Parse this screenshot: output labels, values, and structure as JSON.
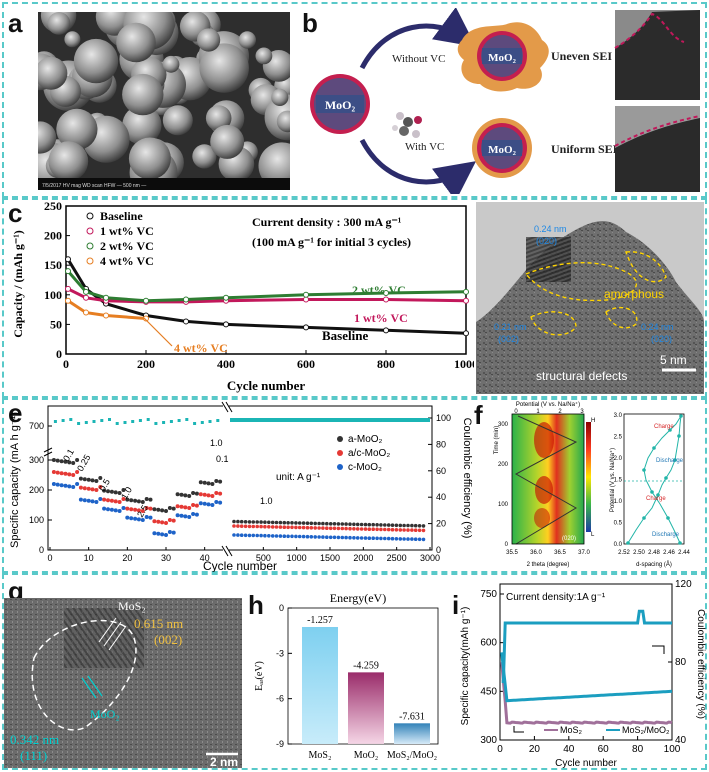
{
  "panels": {
    "a": {
      "label": "a",
      "sem_footer": "7/5/2017  HV  mag  WD  scan  HFW  —  500 nm —"
    },
    "b": {
      "label": "b",
      "core": "MoO₂",
      "without": "Without VC",
      "with": "With VC",
      "uneven": "Uneven SEI",
      "uniform": "Uniform SEI",
      "moo2": "MoO₂"
    },
    "c": {
      "label": "c",
      "title1": "Current density : 300 mA g⁻¹",
      "title2": "(100 mA g⁻¹ for initial 3 cycles)",
      "ylabel": "Capacity / (mAh g⁻¹)",
      "xlabel": "Cycle number",
      "legend": [
        "Baseline",
        "1 wt% VC",
        "2 wt% VC",
        "4 wt% VC"
      ],
      "ann": {
        "b2": "2 wt% VC",
        "b1": "1 wt% VC",
        "base": "Baseline",
        "v4": "4 wt% VC"
      },
      "xticks": [
        "0",
        "200",
        "400",
        "600",
        "800",
        "1000"
      ],
      "yticks": [
        "0",
        "50",
        "100",
        "150",
        "200",
        "250"
      ]
    },
    "d": {
      "label": "d",
      "d1": "0.24 nm",
      "d1b": "(020)",
      "d2": "0.21 nm",
      "d2b": "(002)",
      "d3": "0.24 nm",
      "d3b": "(020)",
      "amorph": "amorphous",
      "defects": "structural defects",
      "scale": "5 nm"
    },
    "e": {
      "label": "e",
      "ylabel": "Specific capacity (mA h g⁻¹)",
      "y2label": "Coulombic efficiency (%)",
      "xlabel": "Cycle number",
      "unit": "unit: A g⁻¹",
      "legend": [
        "a-MoO₂",
        "a/c-MoO₂",
        "c-MoO₂"
      ],
      "rates": [
        "0.1",
        "0.25",
        "0.5",
        "1.0",
        "2.5",
        "1.0",
        "0.1",
        "1.0"
      ],
      "yticks": [
        "0",
        "100",
        "200",
        "300",
        "700"
      ],
      "y2ticks": [
        "0",
        "20",
        "40",
        "60",
        "80",
        "100"
      ],
      "xticks": [
        "0",
        "10",
        "20",
        "30",
        "40",
        "500",
        "1000",
        "1500",
        "2000",
        "2500",
        "3000"
      ]
    },
    "f": {
      "label": "f",
      "top": "Potential (V vs. Na/Na⁺)",
      "ptick": [
        "0",
        "1",
        "2",
        "3"
      ],
      "ylabel": "Time (min)",
      "xlabel": "2 theta (degree)",
      "xticks": [
        "35.5",
        "36.0",
        "36.5",
        "37.0"
      ],
      "yticks": [
        "0",
        "100",
        "200",
        "300"
      ],
      "peak": "(020)",
      "H": "H",
      "L": "L",
      "charge1": "Charge",
      "discharge1": "Discharge",
      "charge2": "Charge",
      "discharge2": "Discharge",
      "rylabel": "Potential (V vs. Na/Na⁺)",
      "rxlabel": "d-spacing (Å)",
      "rxticks": [
        "2.52",
        "2.50",
        "2.48",
        "2.46",
        "2.44"
      ],
      "ryticks": [
        "0.0",
        "0.5",
        "1.0",
        "1.5",
        "2.0",
        "2.5",
        "3.0"
      ]
    },
    "g": {
      "label": "g",
      "mos2": "MoS₂",
      "d1": "0.615 nm",
      "d1b": "(002)",
      "moo2": "MoO₂",
      "d2": "0.342 nm",
      "d2b": "(111)",
      "scale": "2 nm"
    },
    "h": {
      "label": "h",
      "title": "Energy(eV)",
      "ylabel": "Eₐₔ(eV)",
      "yticks": [
        "0",
        "-3",
        "-6",
        "-9"
      ],
      "bars": [
        {
          "name": "MoS₂",
          "value": -1.257,
          "text": "-1.257"
        },
        {
          "name": "MoO₂",
          "value": -4.259,
          "text": "-4.259"
        },
        {
          "name": "MoS₂/MoO₂",
          "value": -7.631,
          "text": "-7.631"
        }
      ]
    },
    "i": {
      "label": "i",
      "title": "Current density:1A g⁻¹",
      "ylabel": "Specific capacity(mAh g⁻¹)",
      "y2label": "Coulombic efficiency (%)",
      "xlabel": "Cycle number",
      "xticks": [
        "0",
        "20",
        "40",
        "60",
        "80",
        "100"
      ],
      "yticks": [
        "300",
        "450",
        "600",
        "750"
      ],
      "y2ticks": [
        "40",
        "80",
        "120"
      ],
      "legend": [
        "MoS₂",
        "MoS₂/MoO₂"
      ]
    }
  },
  "chart_data": [
    {
      "type": "line",
      "title": "Current density : 300 mA g⁻¹",
      "xlabel": "Cycle number",
      "ylabel": "Capacity / (mAh g⁻¹)",
      "xlim": [
        0,
        1000
      ],
      "ylim": [
        0,
        250
      ],
      "x": [
        5,
        50,
        100,
        200,
        300,
        400,
        600,
        800,
        1000
      ],
      "series": [
        {
          "name": "Baseline",
          "values": [
            160,
            110,
            85,
            65,
            55,
            50,
            45,
            40,
            35
          ]
        },
        {
          "name": "1 wt% VC",
          "values": [
            110,
            95,
            90,
            88,
            88,
            90,
            92,
            92,
            90
          ]
        },
        {
          "name": "2 wt% VC",
          "values": [
            140,
            105,
            95,
            90,
            92,
            95,
            100,
            103,
            105
          ]
        },
        {
          "name": "4 wt% VC",
          "values": [
            90,
            70,
            65,
            60,
            null,
            null,
            null,
            null,
            null
          ]
        }
      ]
    },
    {
      "type": "bar",
      "title": "Energy(eV)",
      "categories": [
        "MoS₂",
        "MoO₂",
        "MoS₂/MoO₂"
      ],
      "values": [
        -1.257,
        -4.259,
        -7.631
      ],
      "ylim": [
        -9,
        0
      ]
    }
  ]
}
